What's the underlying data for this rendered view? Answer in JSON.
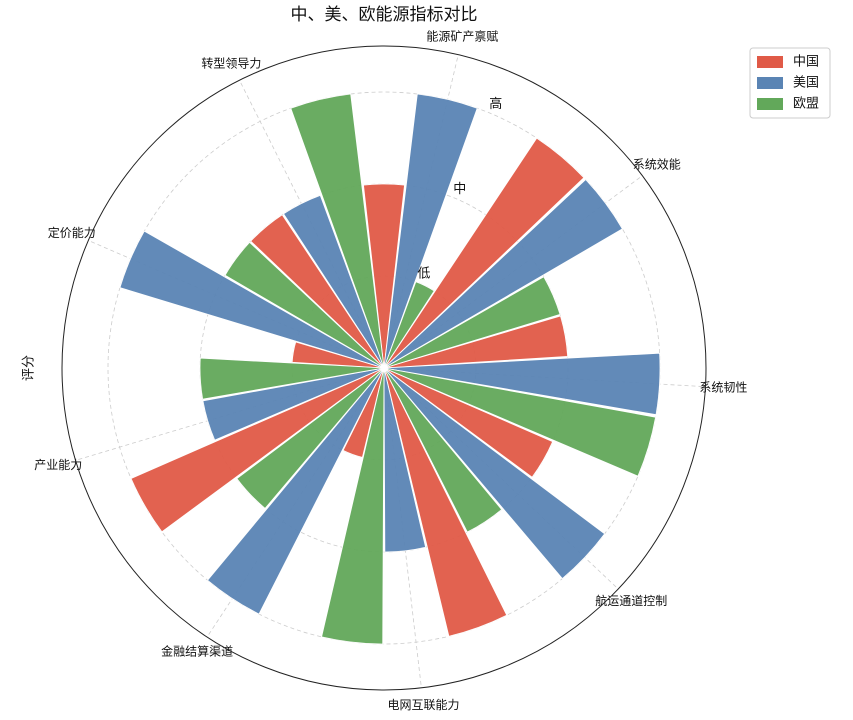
{
  "chart_data": {
    "type": "polar_bar",
    "title": "中、美、欧能源指标对比",
    "ylabel": "评分",
    "categories": [
      "能源矿产禀赋",
      "系统效能",
      "系统韧性",
      "航运通道控制",
      "电网互联能力",
      "金融结算渠道",
      "产业能力",
      "定价能力",
      "转型领导力"
    ],
    "series": [
      {
        "name": "中国",
        "color": "#e05a47",
        "values": [
          2,
          3,
          2,
          2,
          3,
          1,
          3,
          1,
          2
        ]
      },
      {
        "name": "美国",
        "color": "#5a84b4",
        "values": [
          3,
          3,
          3,
          3,
          2,
          3,
          2,
          3,
          2
        ]
      },
      {
        "name": "欧盟",
        "color": "#62a85a",
        "values": [
          1,
          2,
          3,
          2,
          3,
          2,
          2,
          2,
          3
        ]
      }
    ],
    "ylim": [
      0,
      3.5
    ],
    "yticks": [
      {
        "value": 1,
        "label": "低"
      },
      {
        "value": 2,
        "label": "中"
      },
      {
        "value": 3,
        "label": "高"
      }
    ],
    "grid": true,
    "legend": "upper right"
  }
}
